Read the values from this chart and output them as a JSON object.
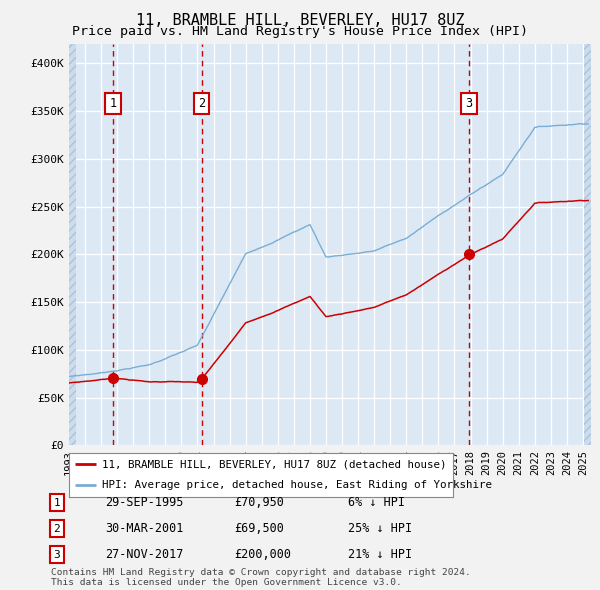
{
  "title": "11, BRAMBLE HILL, BEVERLEY, HU17 8UZ",
  "subtitle": "Price paid vs. HM Land Registry's House Price Index (HPI)",
  "ylim": [
    0,
    420000
  ],
  "yticks": [
    0,
    50000,
    100000,
    150000,
    200000,
    250000,
    300000,
    350000,
    400000
  ],
  "ytick_labels": [
    "£0",
    "£50K",
    "£100K",
    "£150K",
    "£200K",
    "£250K",
    "£300K",
    "£350K",
    "£400K"
  ],
  "background_color": "#ccdcec",
  "plot_bg_color": "#dce9f5",
  "grid_color": "#ffffff",
  "red_line_color": "#cc0000",
  "blue_line_color": "#7aadd4",
  "sale_points": [
    {
      "date_num": 1995.75,
      "price": 70950,
      "label": "1"
    },
    {
      "date_num": 2001.25,
      "price": 69500,
      "label": "2"
    },
    {
      "date_num": 2017.9,
      "price": 200000,
      "label": "3"
    }
  ],
  "vline_color": "#cc0000",
  "legend_items": [
    "11, BRAMBLE HILL, BEVERLEY, HU17 8UZ (detached house)",
    "HPI: Average price, detached house, East Riding of Yorkshire"
  ],
  "table_rows": [
    [
      "1",
      "29-SEP-1995",
      "£70,950",
      "6% ↓ HPI"
    ],
    [
      "2",
      "30-MAR-2001",
      "£69,500",
      "25% ↓ HPI"
    ],
    [
      "3",
      "27-NOV-2017",
      "£200,000",
      "21% ↓ HPI"
    ]
  ],
  "footer": "Contains HM Land Registry data © Crown copyright and database right 2024.\nThis data is licensed under the Open Government Licence v3.0.",
  "title_fontsize": 11,
  "subtitle_fontsize": 9.5,
  "fig_bg": "#f2f2f2"
}
